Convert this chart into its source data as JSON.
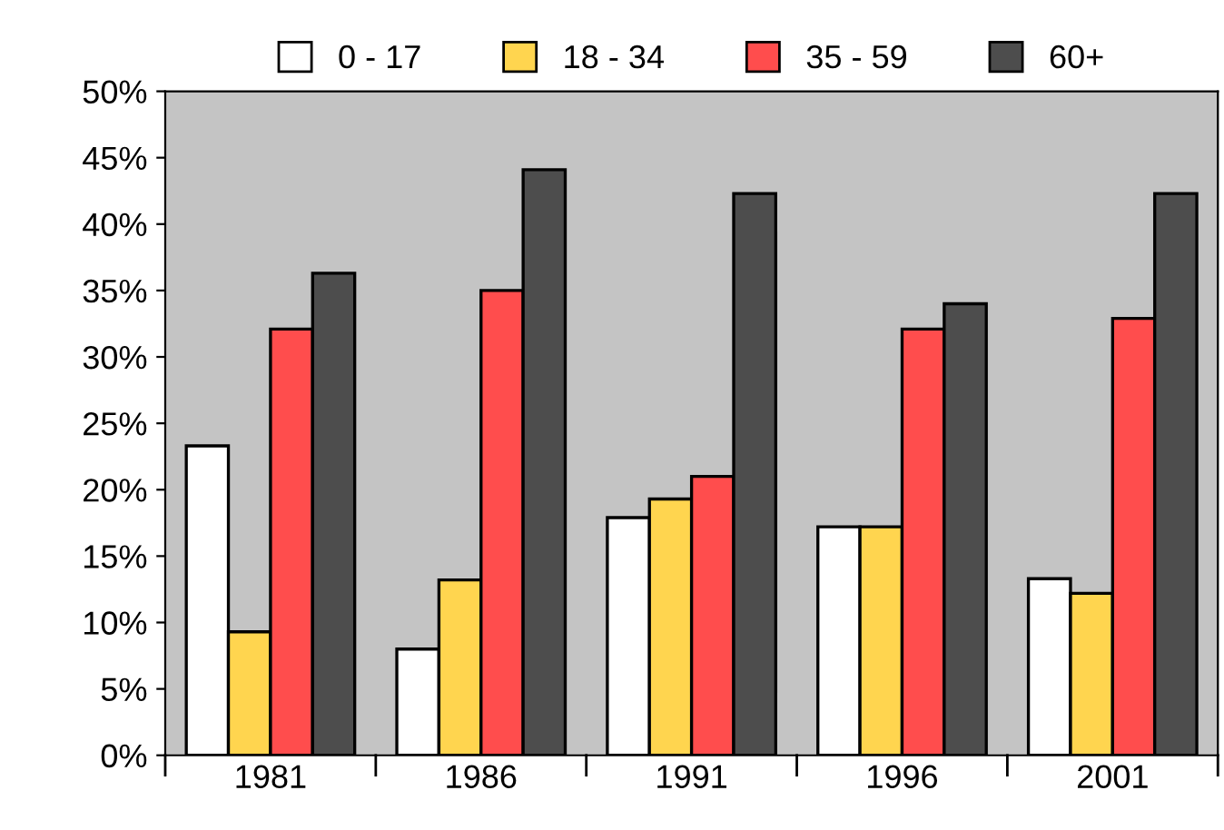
{
  "chart_data": {
    "type": "bar",
    "categories": [
      "1981",
      "1986",
      "1991",
      "1996",
      "2001"
    ],
    "series": [
      {
        "name": "0 - 17",
        "color": "#ffffff",
        "values": [
          23.3,
          8,
          17.9,
          17.2,
          13.3
        ]
      },
      {
        "name": "18 - 34",
        "color": "#ffd54f",
        "values": [
          9.3,
          13.2,
          19.3,
          17.2,
          12.2
        ]
      },
      {
        "name": "35 - 59",
        "color": "#ff4d4d",
        "values": [
          32.1,
          35,
          21,
          32.1,
          32.9
        ]
      },
      {
        "name": "60+",
        "color": "#4d4d4d",
        "values": [
          36.3,
          44.1,
          42.3,
          34,
          42.3
        ]
      }
    ],
    "ylim": [
      0,
      50
    ],
    "yticks": [
      {
        "value": 0,
        "label": "0%"
      },
      {
        "value": 5,
        "label": "5%"
      },
      {
        "value": 10,
        "label": "10%"
      },
      {
        "value": 15,
        "label": "15%"
      },
      {
        "value": 20,
        "label": "20%"
      },
      {
        "value": 25,
        "label": "25%"
      },
      {
        "value": 30,
        "label": "30%"
      },
      {
        "value": 35,
        "label": "35%"
      },
      {
        "value": 40,
        "label": "40%"
      },
      {
        "value": 45,
        "label": "45%"
      },
      {
        "value": 50,
        "label": "50%"
      }
    ],
    "grid": false,
    "legend": "top"
  }
}
